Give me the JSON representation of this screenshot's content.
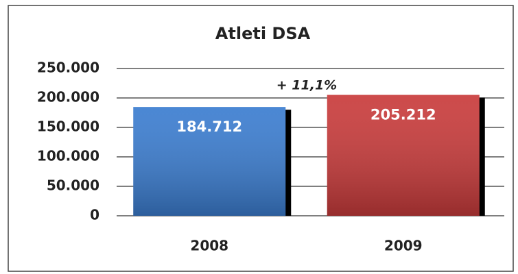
{
  "chart_data": {
    "type": "bar",
    "title": "Atleti DSA",
    "categories": [
      "2008",
      "2009"
    ],
    "values": [
      184712,
      205212
    ],
    "value_labels": [
      "184.712",
      "205.212"
    ],
    "colors": [
      "#3b7dd0",
      "#c93b3b"
    ],
    "annotation": "+ 11,1%",
    "ylim": [
      0,
      250000
    ],
    "yticks": [
      {
        "value": 0,
        "label": "0"
      },
      {
        "value": 50000,
        "label": "50.000"
      },
      {
        "value": 100000,
        "label": "100.000"
      },
      {
        "value": 150000,
        "label": "150.000"
      },
      {
        "value": 200000,
        "label": "200.000"
      },
      {
        "value": 250000,
        "label": "250.000"
      }
    ],
    "grid": true
  }
}
